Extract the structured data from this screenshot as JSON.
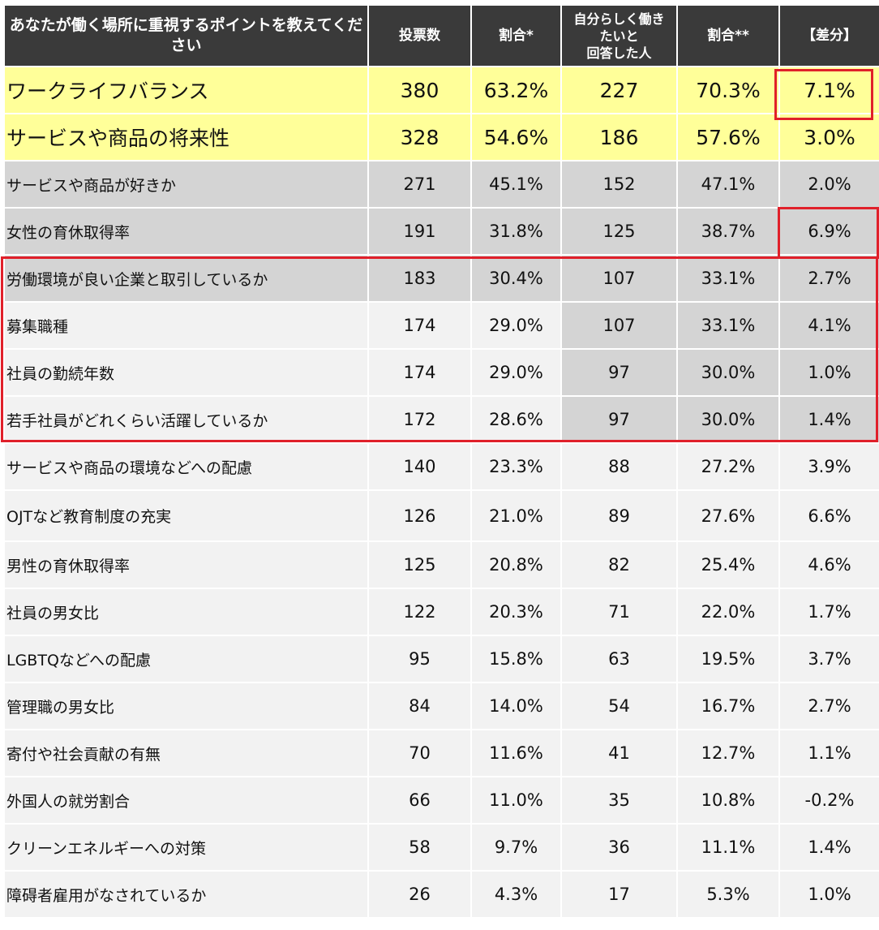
{
  "chart_data": {
    "type": "table",
    "columns": [
      "あなたが働く場所に重視するポイントを教えてください",
      "投票数",
      "割合*",
      "自分らしく働きたいと回答した人",
      "割合**",
      "【差分】"
    ],
    "header_lines": {
      "c0": "あなたが働く場所に重視するポイントを教えてください",
      "c1": "投票数",
      "c2": "割合*",
      "c3a": "自分らしく働き",
      "c3b": "たいと",
      "c3c": "回答した人",
      "c4": "割合**",
      "c5": "【差分】"
    },
    "rows": [
      {
        "label": "ワークライフバランス",
        "votes": "380",
        "ratio": "63.2%",
        "self": "227",
        "ratio2": "70.3%",
        "diff": "7.1%"
      },
      {
        "label": "サービスや商品の将来性",
        "votes": "328",
        "ratio": "54.6%",
        "self": "186",
        "ratio2": "57.6%",
        "diff": "3.0%"
      },
      {
        "label": "サービスや商品が好きか",
        "votes": "271",
        "ratio": "45.1%",
        "self": "152",
        "ratio2": "47.1%",
        "diff": "2.0%"
      },
      {
        "label": "女性の育休取得率",
        "votes": "191",
        "ratio": "31.8%",
        "self": "125",
        "ratio2": "38.7%",
        "diff": "6.9%"
      },
      {
        "label": "労働環境が良い企業と取引しているか",
        "votes": "183",
        "ratio": "30.4%",
        "self": "107",
        "ratio2": "33.1%",
        "diff": "2.7%"
      },
      {
        "label": "募集職種",
        "votes": "174",
        "ratio": "29.0%",
        "self": "107",
        "ratio2": "33.1%",
        "diff": "4.1%"
      },
      {
        "label": "社員の勤続年数",
        "votes": "174",
        "ratio": "29.0%",
        "self": "97",
        "ratio2": "30.0%",
        "diff": "1.0%"
      },
      {
        "label": "若手社員がどれくらい活躍しているか",
        "votes": "172",
        "ratio": "28.6%",
        "self": "97",
        "ratio2": "30.0%",
        "diff": "1.4%"
      },
      {
        "label": "サービスや商品の環境などへの配慮",
        "votes": "140",
        "ratio": "23.3%",
        "self": "88",
        "ratio2": "27.2%",
        "diff": "3.9%"
      },
      {
        "label": "OJTなど教育制度の充実",
        "votes": "126",
        "ratio": "21.0%",
        "self": "89",
        "ratio2": "27.6%",
        "diff": "6.6%"
      },
      {
        "label": "男性の育休取得率",
        "votes": "125",
        "ratio": "20.8%",
        "self": "82",
        "ratio2": "25.4%",
        "diff": "4.6%"
      },
      {
        "label": "社員の男女比",
        "votes": "122",
        "ratio": "20.3%",
        "self": "71",
        "ratio2": "22.0%",
        "diff": "1.7%"
      },
      {
        "label": "LGBTQなどへの配慮",
        "votes": "95",
        "ratio": "15.8%",
        "self": "63",
        "ratio2": "19.5%",
        "diff": "3.7%"
      },
      {
        "label": "管理職の男女比",
        "votes": "84",
        "ratio": "14.0%",
        "self": "54",
        "ratio2": "16.7%",
        "diff": "2.7%"
      },
      {
        "label": "寄付や社会貢献の有無",
        "votes": "70",
        "ratio": "11.6%",
        "self": "41",
        "ratio2": "12.7%",
        "diff": "1.1%"
      },
      {
        "label": "外国人の就労割合",
        "votes": "66",
        "ratio": "11.0%",
        "self": "35",
        "ratio2": "10.8%",
        "diff": "-0.2%"
      },
      {
        "label": "クリーンエネルギーへの対策",
        "votes": "58",
        "ratio": "9.7%",
        "self": "36",
        "ratio2": "11.1%",
        "diff": "1.4%"
      },
      {
        "label": "障碍者雇用がなされているか",
        "votes": "26",
        "ratio": "4.3%",
        "self": "17",
        "ratio2": "5.3%",
        "diff": "1.0%"
      }
    ],
    "highlight_color": "#e0202a",
    "row_colors": {
      "yellow": "#ffff99",
      "gray": "#d4d4d4",
      "light": "#f2f2f2",
      "header": "#3a3a3a"
    }
  }
}
